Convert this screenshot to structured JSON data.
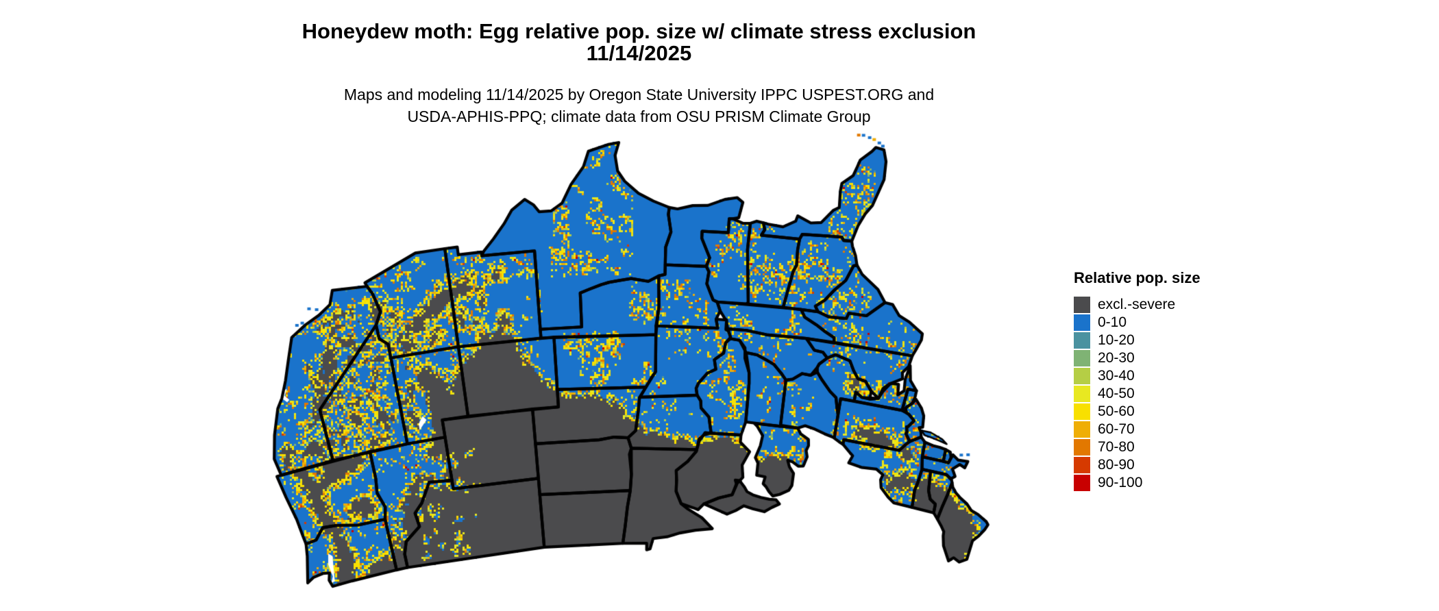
{
  "title": {
    "line1": "Honeydew moth: Egg relative pop. size w/ climate stress exclusion",
    "line2": "11/14/2025"
  },
  "subtitle": {
    "line1": "Maps and modeling 11/14/2025 by Oregon State University IPPC USPEST.ORG and",
    "line2": "USDA-APHIS-PPQ; climate data from OSU PRISM Climate Group"
  },
  "legend": {
    "title": "Relative pop. size",
    "items": [
      {
        "label": "excl.-severe",
        "color": "#4B4B4D"
      },
      {
        "label": "0-10",
        "color": "#1A73CB"
      },
      {
        "label": "10-20",
        "color": "#4A92A0"
      },
      {
        "label": "20-30",
        "color": "#7FB374"
      },
      {
        "label": "30-40",
        "color": "#B5CE45"
      },
      {
        "label": "40-50",
        "color": "#E8E821"
      },
      {
        "label": "50-60",
        "color": "#F8E000"
      },
      {
        "label": "60-70",
        "color": "#EFAE06"
      },
      {
        "label": "70-80",
        "color": "#E27800"
      },
      {
        "label": "80-90",
        "color": "#D63A00"
      },
      {
        "label": "90-100",
        "color": "#C80000"
      }
    ]
  },
  "map": {
    "background": "#FFFFFF",
    "border_color": "#000000",
    "base_class_label": "0-10",
    "exclusion_class_label": "excl.-severe",
    "region": "Contiguous United States"
  }
}
